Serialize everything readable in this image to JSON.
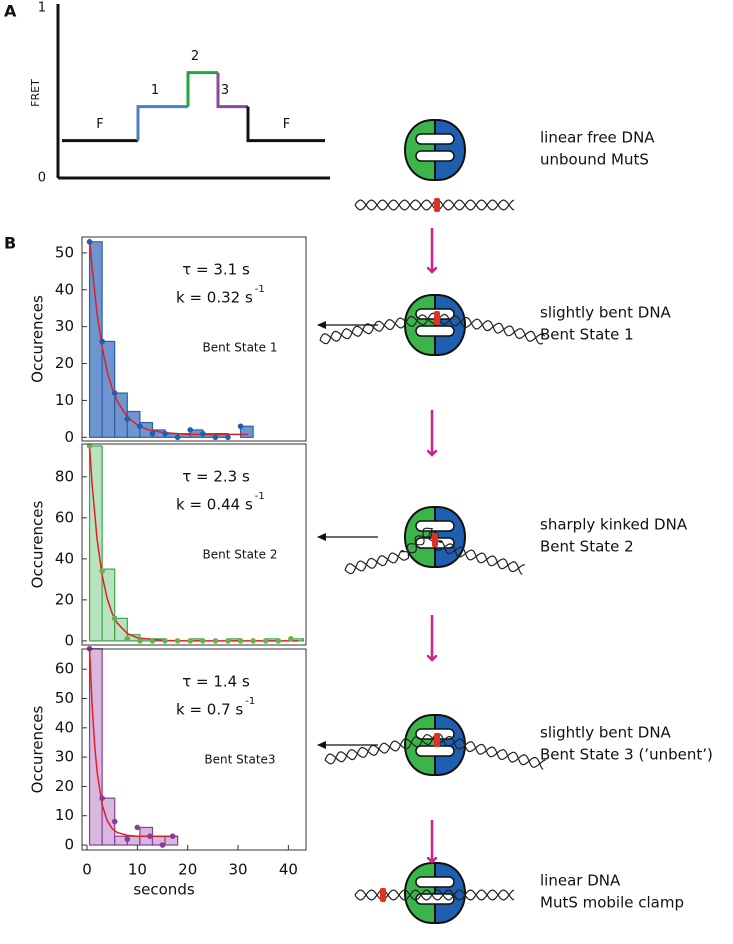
{
  "panel_labels": [
    "A",
    "B"
  ],
  "chart_data": [
    {
      "type": "step",
      "ylabel": "FRET",
      "ylim": [
        0,
        1
      ],
      "yticks": [
        0,
        1
      ],
      "categories": [
        "F",
        "1",
        "2",
        "3",
        "F"
      ],
      "values": [
        0.22,
        0.42,
        0.62,
        0.42,
        0.22
      ],
      "colors": [
        "#111111",
        "#4a7fc1",
        "#22a63c",
        "#8a4a9e",
        "#111111"
      ]
    },
    {
      "type": "histogram",
      "ylabel": "Occurences",
      "xlim": [
        -1,
        43.5
      ],
      "ylim": [
        -1,
        54.3
      ],
      "yticks": [
        0,
        10,
        20,
        30,
        40,
        50
      ],
      "bins": [
        0.5,
        3,
        5.5,
        8,
        10.5,
        13,
        15.5,
        18,
        20.5,
        23,
        25.5,
        28,
        30.5,
        33
      ],
      "values": [
        53,
        26,
        12,
        7,
        4,
        2,
        1,
        1,
        2,
        1,
        1,
        0,
        3
      ],
      "color": "#6f95d0",
      "edgecolor": "#2e5fa8",
      "points": {
        "x": [
          0.5,
          3,
          5.5,
          8,
          10.5,
          13,
          15.5,
          18,
          20.5,
          23,
          25.5,
          28,
          30.5
        ],
        "values": [
          53,
          26,
          12,
          5,
          3,
          1,
          1,
          0,
          2,
          1,
          0,
          0,
          3
        ],
        "color": "#1f5fb0"
      },
      "fit": {
        "x": [
          0.5,
          1,
          2,
          3,
          4,
          5,
          6,
          8,
          10,
          12,
          15,
          20,
          25,
          32
        ],
        "values": [
          53.8,
          45.9,
          33.5,
          24.5,
          17.9,
          13.2,
          9.8,
          5.5,
          3.3,
          2.1,
          1.3,
          0.8,
          0.8,
          0.8
        ],
        "color": "#e02020"
      },
      "annotations": {
        "tau": "τ = 3.1 s",
        "k": "k = 0.32 s",
        "k_exponent": "-1",
        "state": "Bent State 1"
      }
    },
    {
      "type": "histogram",
      "ylabel": "Occurences",
      "xlim": [
        -1,
        43.5
      ],
      "ylim": [
        -2,
        96
      ],
      "yticks": [
        0,
        20,
        40,
        60,
        80
      ],
      "bins": [
        0.5,
        3,
        5.5,
        8,
        10.5,
        13,
        15.5,
        18,
        20.5,
        23,
        25.5,
        28,
        30.5,
        33,
        35.5,
        38,
        40.5,
        43
      ],
      "values": [
        95,
        35,
        11,
        3,
        1,
        1,
        0,
        0,
        1,
        0,
        0,
        1,
        0,
        0,
        1,
        0,
        1
      ],
      "color": "#b9e3c0",
      "edgecolor": "#3aa64c",
      "points": {
        "x": [
          0.5,
          3,
          5.5,
          8,
          10.5,
          13,
          15.5,
          18,
          20.5,
          23,
          25.5,
          28,
          30.5,
          33,
          35.5,
          38,
          40.5
        ],
        "values": [
          95,
          34,
          11,
          1,
          0,
          0,
          0,
          0,
          0,
          0,
          0,
          0,
          0,
          0,
          0,
          0,
          1
        ],
        "color": "#6ab04c"
      },
      "fit": {
        "x": [
          0.5,
          1,
          2,
          3,
          4,
          5,
          6,
          8,
          10,
          15,
          20,
          30,
          42
        ],
        "values": [
          95,
          76.5,
          49.5,
          32,
          20.7,
          13.4,
          8.7,
          3.6,
          1.5,
          0.2,
          0,
          0,
          0
        ],
        "color": "#e02020"
      },
      "annotations": {
        "tau": "τ = 2.3 s",
        "k": "k = 0.44 s",
        "k_exponent": "-1",
        "state": "Bent State 2"
      }
    },
    {
      "type": "histogram",
      "ylabel": "Occurences",
      "xlabel": "seconds",
      "xlim": [
        -1,
        43.5
      ],
      "ylim": [
        -1.7,
        66.9
      ],
      "yticks": [
        0,
        10,
        20,
        30,
        40,
        50,
        60
      ],
      "xticks": [
        0,
        10,
        20,
        30,
        40
      ],
      "bins": [
        0.5,
        3,
        5.5,
        8,
        10.5,
        13,
        15.5,
        18
      ],
      "values": [
        67,
        16,
        3,
        3,
        6,
        3,
        3
      ],
      "color": "#d9b8df",
      "edgecolor": "#8a3d98",
      "points": {
        "x": [
          0.5,
          3,
          5.5,
          8,
          10,
          12.5,
          15,
          17
        ],
        "values": [
          67,
          16,
          8,
          2,
          6,
          3,
          0,
          3
        ],
        "color": "#8a3d98"
      },
      "fit": {
        "x": [
          0.5,
          1,
          1.5,
          2,
          3,
          4,
          5,
          6,
          8,
          10,
          18
        ],
        "values": [
          67,
          48,
          34.4,
          24.9,
          13.8,
          8.3,
          5.6,
          4.3,
          3.3,
          3,
          3
        ],
        "color": "#e02020"
      },
      "annotations": {
        "tau": "τ = 1.4 s",
        "k": "k = 0.7 s",
        "k_exponent": "-1",
        "state": "Bent State3"
      }
    }
  ],
  "diagram": {
    "states": [
      {
        "lines": [
          "linear free DNA",
          "unbound MutS"
        ]
      },
      {
        "lines": [
          "slightly bent DNA",
          "Bent State 1"
        ]
      },
      {
        "lines": [
          "sharply kinked DNA",
          "Bent State 2"
        ]
      },
      {
        "lines": [
          "slightly bent DNA",
          "Bent State 3 (’unbent’)"
        ]
      },
      {
        "lines": [
          "linear DNA",
          "MutS mobile clamp"
        ]
      }
    ]
  }
}
